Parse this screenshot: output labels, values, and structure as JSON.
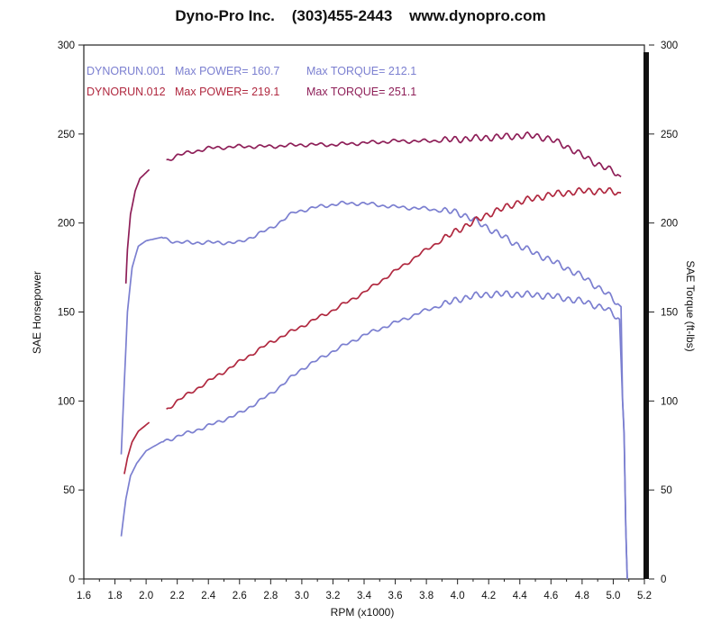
{
  "header": {
    "title": "Dyno-Pro Inc.    (303)455-2443    www.dynopro.com"
  },
  "chart_data": {
    "type": "line",
    "title": "Dyno-Pro Inc.    (303)455-2443    www.dynopro.com",
    "xlabel": "RPM (x1000)",
    "ylabel": "SAE Horsepower",
    "y2label": "SAE Torque (ft-lbs)",
    "xlim": [
      1.6,
      5.2
    ],
    "ylim": [
      0,
      300
    ],
    "y2lim": [
      0,
      300
    ],
    "x_ticks": [
      "1.6",
      "1.8",
      "2.0",
      "2.2",
      "2.4",
      "2.6",
      "2.8",
      "3.0",
      "3.2",
      "3.4",
      "3.6",
      "3.8",
      "4.0",
      "4.2",
      "4.4",
      "4.6",
      "4.8",
      "5.0",
      "5.2"
    ],
    "y_ticks": [
      "0",
      "50",
      "100",
      "150",
      "200",
      "250",
      "300"
    ],
    "grid": false,
    "legend": [
      {
        "run": "DYNORUN.001",
        "power_label": "Max POWER=",
        "power_value": "160.7",
        "torque_label": "Max TORQUE=",
        "torque_value": "212.1",
        "color": "#7b7fd0"
      },
      {
        "run": "DYNORUN.012",
        "power_label": "Max POWER=",
        "power_value": "219.1",
        "torque_label": "Max TORQUE=",
        "torque_value": "251.1",
        "color": "#b0283f",
        "torque_color": "#8e1f58"
      }
    ],
    "series": [
      {
        "name": "DYNORUN.001 Power",
        "color": "#7b7fd0",
        "points": [
          [
            1.84,
            24
          ],
          [
            1.87,
            45
          ],
          [
            1.9,
            58
          ],
          [
            1.94,
            65
          ],
          [
            2.0,
            72
          ],
          [
            2.1,
            77
          ],
          [
            2.2,
            80
          ],
          [
            2.4,
            86
          ],
          [
            2.6,
            93
          ],
          [
            2.8,
            104
          ],
          [
            3.0,
            118
          ],
          [
            3.2,
            128
          ],
          [
            3.4,
            137
          ],
          [
            3.6,
            144
          ],
          [
            3.8,
            151
          ],
          [
            4.0,
            157
          ],
          [
            4.1,
            159
          ],
          [
            4.2,
            160
          ],
          [
            4.4,
            160
          ],
          [
            4.6,
            159
          ],
          [
            4.8,
            156
          ],
          [
            4.95,
            152
          ],
          [
            5.04,
            146
          ],
          [
            5.06,
            100
          ],
          [
            5.07,
            80
          ],
          [
            5.08,
            30
          ],
          [
            5.09,
            0
          ]
        ]
      },
      {
        "name": "DYNORUN.001 Torque",
        "color": "#7b7fd0",
        "points": [
          [
            1.84,
            70
          ],
          [
            1.86,
            110
          ],
          [
            1.88,
            150
          ],
          [
            1.91,
            175
          ],
          [
            1.95,
            187
          ],
          [
            2.0,
            190
          ],
          [
            2.1,
            192
          ],
          [
            2.2,
            189
          ],
          [
            2.4,
            189
          ],
          [
            2.6,
            189
          ],
          [
            2.8,
            197
          ],
          [
            2.95,
            206
          ],
          [
            3.1,
            209
          ],
          [
            3.25,
            211
          ],
          [
            3.4,
            211
          ],
          [
            3.6,
            209
          ],
          [
            3.8,
            208
          ],
          [
            4.0,
            206
          ],
          [
            4.1,
            202
          ],
          [
            4.2,
            197
          ],
          [
            4.3,
            192
          ],
          [
            4.4,
            187
          ],
          [
            4.6,
            179
          ],
          [
            4.8,
            170
          ],
          [
            4.95,
            161
          ],
          [
            5.05,
            153
          ],
          [
            5.06,
            100
          ],
          [
            5.07,
            82
          ],
          [
            5.08,
            30
          ],
          [
            5.09,
            0
          ]
        ]
      },
      {
        "name": "DYNORUN.012 Power",
        "color": "#b0283f",
        "segments": [
          [
            [
              1.86,
              59
            ],
            [
              1.88,
              68
            ],
            [
              1.91,
              77
            ],
            [
              1.95,
              83
            ],
            [
              2.02,
              88
            ]
          ],
          [
            [
              2.13,
              95
            ],
            [
              2.2,
              100
            ],
            [
              2.4,
              111
            ],
            [
              2.6,
              122
            ],
            [
              2.8,
              133
            ],
            [
              3.0,
              142
            ],
            [
              3.2,
              151
            ],
            [
              3.4,
              161
            ],
            [
              3.6,
              173
            ],
            [
              3.8,
              185
            ],
            [
              4.0,
              196
            ],
            [
              4.2,
              205
            ],
            [
              4.4,
              212
            ],
            [
              4.6,
              216
            ],
            [
              4.8,
              218
            ],
            [
              4.95,
              218
            ],
            [
              5.05,
              217
            ]
          ]
        ]
      },
      {
        "name": "DYNORUN.012 Torque",
        "color": "#8e1f58",
        "segments": [
          [
            [
              1.87,
              166
            ],
            [
              1.88,
              185
            ],
            [
              1.9,
              205
            ],
            [
              1.93,
              218
            ],
            [
              1.96,
              225
            ],
            [
              2.02,
              230
            ]
          ],
          [
            [
              2.13,
              235
            ],
            [
              2.2,
              238
            ],
            [
              2.4,
              242
            ],
            [
              2.6,
              243
            ],
            [
              2.8,
              243
            ],
            [
              3.0,
              244
            ],
            [
              3.2,
              244
            ],
            [
              3.4,
              245
            ],
            [
              3.6,
              246
            ],
            [
              3.8,
              246
            ],
            [
              4.0,
              247
            ],
            [
              4.2,
              248
            ],
            [
              4.4,
              249
            ],
            [
              4.5,
              249
            ],
            [
              4.6,
              247
            ],
            [
              4.7,
              243
            ],
            [
              4.8,
              238
            ],
            [
              4.9,
              233
            ],
            [
              5.0,
              229
            ],
            [
              5.05,
              226
            ]
          ]
        ]
      }
    ]
  }
}
